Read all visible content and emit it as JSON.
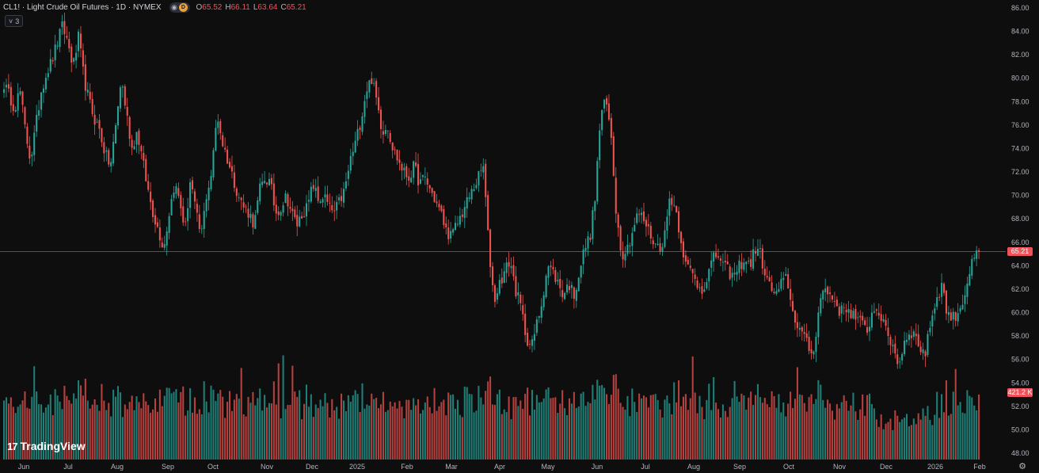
{
  "legend": {
    "title": "CL1! · Light Crude Oil Futures · 1D · NYMEX",
    "eye_icon": "eye-icon",
    "badge": "D",
    "ohlc": [
      {
        "key": "O",
        "value": "65.52"
      },
      {
        "key": "H",
        "value": "66.11"
      },
      {
        "key": "L",
        "value": "63.64"
      },
      {
        "key": "C",
        "value": "65.21"
      }
    ]
  },
  "collapse_button": {
    "chevron": "˅",
    "count": "3"
  },
  "logo": {
    "mark": "17",
    "text": "TradingView"
  },
  "price_tag": {
    "label": "65.21",
    "color": "#f0525c"
  },
  "volume_tag": {
    "label": "421.2 K",
    "color": "#f0525c"
  },
  "settings_icon": "gear-icon",
  "colors": {
    "up": "#26a69a",
    "down": "#ef5350",
    "bg": "#0e0e0e",
    "axis_text": "#b2b5be"
  },
  "chart_data": {
    "type": "candlestick",
    "title": "",
    "ylim": [
      48,
      86
    ],
    "y_ticks": [
      "48.00",
      "50.00",
      "52.00",
      "54.00",
      "56.00",
      "58.00",
      "60.00",
      "62.00",
      "64.00",
      "66.00",
      "68.00",
      "70.00",
      "72.00",
      "74.00",
      "76.00",
      "78.00",
      "80.00",
      "82.00",
      "84.00",
      "86.00"
    ],
    "x_ticks": [
      "Jun",
      "Jul",
      "Aug",
      "Sep",
      "Oct",
      "Nov",
      "Dec",
      "2025",
      "Feb",
      "Mar",
      "Apr",
      "May",
      "Jun",
      "Jul",
      "Aug",
      "Sep",
      "Oct",
      "Nov",
      "Dec",
      "2026",
      "Feb"
    ],
    "last_close": 65.21,
    "grid": false,
    "close_path": [
      79.5,
      78.5,
      77.5,
      79.0,
      75.5,
      73.0,
      76.0,
      79.0,
      80.5,
      81.5,
      83.0,
      84.5,
      83.0,
      81.0,
      83.5,
      80.0,
      78.0,
      76.5,
      75.5,
      73.5,
      72.5,
      76.0,
      80.0,
      77.0,
      74.0,
      75.5,
      73.0,
      70.5,
      68.5,
      67.0,
      65.5,
      68.5,
      71.0,
      69.5,
      67.0,
      71.5,
      68.5,
      66.5,
      70.0,
      72.0,
      77.0,
      74.5,
      73.0,
      71.5,
      70.0,
      69.0,
      68.5,
      67.5,
      70.5,
      71.5,
      71.0,
      68.5,
      69.0,
      70.0,
      68.5,
      67.5,
      68.5,
      69.0,
      71.0,
      69.5,
      70.0,
      69.0,
      68.5,
      69.5,
      70.5,
      73.0,
      74.5,
      76.5,
      79.0,
      80.0,
      78.0,
      75.5,
      76.0,
      74.0,
      73.0,
      72.0,
      71.5,
      72.5,
      71.0,
      71.5,
      70.5,
      69.5,
      68.5,
      67.0,
      66.5,
      67.5,
      68.5,
      69.5,
      70.5,
      71.5,
      72.5,
      65.5,
      61.0,
      62.5,
      63.5,
      64.5,
      62.0,
      60.5,
      58.0,
      57.0,
      59.0,
      61.0,
      64.0,
      63.5,
      62.5,
      61.5,
      62.5,
      61.5,
      63.5,
      65.5,
      66.5,
      70.0,
      77.0,
      78.0,
      75.0,
      68.0,
      65.0,
      65.5,
      67.0,
      68.5,
      68.0,
      67.0,
      66.0,
      65.5,
      66.5,
      70.0,
      69.0,
      66.5,
      64.0,
      63.5,
      62.5,
      62.0,
      63.0,
      64.5,
      65.0,
      64.0,
      63.5,
      63.0,
      64.0,
      64.5,
      64.0,
      65.5,
      65.0,
      63.0,
      62.0,
      61.5,
      62.5,
      63.0,
      60.0,
      59.0,
      58.0,
      57.0,
      56.5,
      61.0,
      62.0,
      61.5,
      61.0,
      60.0,
      60.5,
      60.0,
      59.5,
      59.0,
      58.5,
      60.0,
      60.5,
      59.0,
      58.0,
      57.0,
      55.5,
      57.5,
      58.5,
      58.0,
      57.0,
      56.5,
      59.5,
      61.0,
      62.5,
      60.0,
      59.5,
      60.0,
      61.0,
      63.0,
      64.5,
      65.21
    ],
    "volume_ylim": [
      0,
      160
    ],
    "volume_tag_value": "421.2 K"
  }
}
